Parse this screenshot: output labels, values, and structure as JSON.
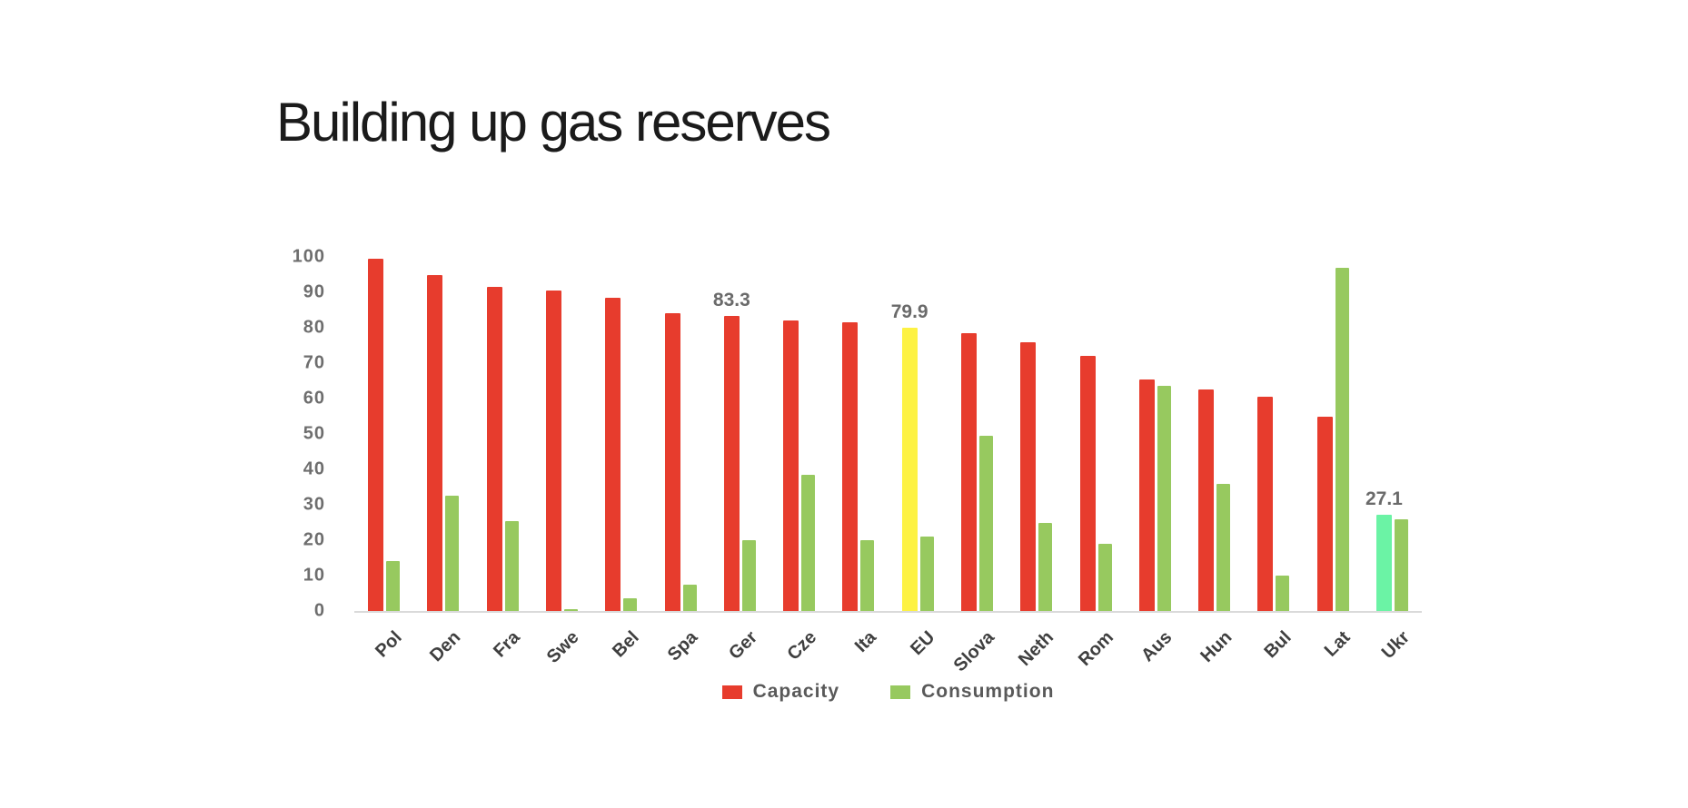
{
  "title": "Building up gas reserves",
  "chart_data": {
    "type": "bar",
    "title": "Building up gas reserves",
    "categories": [
      "Pol",
      "Den",
      "Fra",
      "Swe",
      "Bel",
      "Spa",
      "Ger",
      "Cze",
      "Ita",
      "EU",
      "Slova",
      "Neth",
      "Rom",
      "Aus",
      "Hun",
      "Bul",
      "Lat",
      "Ukr"
    ],
    "series": [
      {
        "name": "Capacity",
        "color": "#e73c2d",
        "color_overrides": {
          "EU": "#fdf243",
          "Ukr": "#6bf3a5"
        },
        "values": [
          99.5,
          95,
          91.5,
          90.5,
          88.5,
          84,
          83.3,
          82,
          81.5,
          79.9,
          78.5,
          76,
          72,
          65.5,
          62.5,
          60.5,
          55,
          27.1
        ]
      },
      {
        "name": "Consumption",
        "color": "#97c95f",
        "values": [
          14,
          32.5,
          25.5,
          0.5,
          3.5,
          7.5,
          20,
          38.5,
          20,
          21,
          49.5,
          25,
          19,
          63.5,
          36,
          10,
          97,
          26
        ]
      }
    ],
    "data_labels": [
      {
        "category": "Ger",
        "series": "Capacity",
        "text": "83.3"
      },
      {
        "category": "EU",
        "series": "Capacity",
        "text": "79.9"
      },
      {
        "category": "Ukr",
        "series": "Capacity",
        "text": "27.1"
      }
    ],
    "xlabel": "",
    "ylabel": "",
    "ylim": [
      0,
      100
    ],
    "yticks": [
      0,
      10,
      20,
      30,
      40,
      50,
      60,
      70,
      80,
      90,
      100
    ],
    "grid": false,
    "legend_position": "bottom"
  },
  "legend": {
    "items": [
      {
        "label": "Capacity",
        "color": "#e73c2d"
      },
      {
        "label": "Consumption",
        "color": "#97c95f"
      }
    ]
  }
}
